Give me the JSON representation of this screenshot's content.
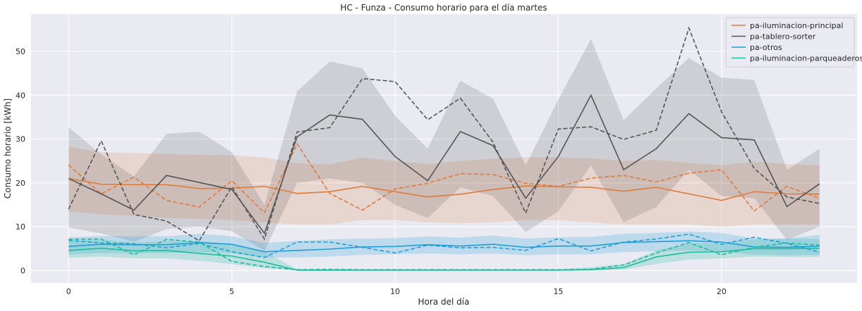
{
  "chart_data": {
    "type": "line",
    "title": "HC - Funza - Consumo horario para el día martes",
    "xlabel": "Hora del día",
    "ylabel": "Consumo horario [kWh]",
    "xlim": [
      -1.15,
      24.15
    ],
    "ylim": [
      -2.8,
      58.5
    ],
    "xticks": [
      0,
      5,
      10,
      15,
      20
    ],
    "yticks": [
      0,
      10,
      20,
      30,
      40,
      50
    ],
    "grid": true,
    "legend_position": "top-right",
    "x": [
      0,
      1,
      2,
      3,
      4,
      5,
      6,
      7,
      8,
      9,
      10,
      11,
      12,
      13,
      14,
      15,
      16,
      17,
      18,
      19,
      20,
      21,
      22,
      23
    ],
    "series": [
      {
        "name": "pa-iluminacion-principal",
        "color": "#e07b39",
        "mean": [
          21,
          19.7,
          19.6,
          19.6,
          18.7,
          18.8,
          19.2,
          17.6,
          18.0,
          19.2,
          18.0,
          16.8,
          17.4,
          18.5,
          19.3,
          19.1,
          19.0,
          18.1,
          19.0,
          17.5,
          16.0,
          18.0,
          17.5,
          17.4
        ],
        "lower": [
          13.5,
          12.8,
          12.5,
          12.0,
          11.8,
          11.5,
          11.0,
          10.5,
          10.5,
          11.5,
          11.5,
          11.0,
          10.8,
          11.0,
          11.5,
          11.5,
          11.0,
          10.5,
          10.5,
          10.5,
          10.0,
          10.5,
          10.5,
          10.5
        ],
        "upper": [
          28.2,
          27.0,
          26.8,
          26.6,
          26.4,
          26.3,
          25.8,
          24.5,
          24.2,
          25.8,
          25.0,
          24.3,
          25.0,
          25.5,
          25.8,
          25.8,
          25.6,
          25.0,
          25.2,
          24.6,
          24.0,
          24.8,
          24.3,
          24.0
        ],
        "dashed": [
          24.1,
          17.5,
          21.3,
          16.0,
          14.5,
          20.5,
          13.2,
          28.9,
          17.6,
          13.8,
          18.6,
          19.9,
          22.1,
          21.9,
          19.9,
          19.2,
          21.1,
          21.7,
          20.2,
          22.2,
          23.0,
          13.6,
          19.2,
          16.5
        ]
      },
      {
        "name": "pa-tablero-sorter",
        "color": "#555555",
        "mean": [
          21.0,
          17.5,
          13.8,
          21.7,
          20.1,
          18.5,
          8.5,
          30.5,
          35.5,
          34.5,
          26.0,
          20.5,
          31.7,
          28.5,
          16.5,
          26.0,
          40.0,
          23.0,
          27.8,
          35.8,
          30.3,
          29.8,
          14.6,
          19.8
        ],
        "lower": [
          9.8,
          8.5,
          6.5,
          9.5,
          10.0,
          9.0,
          4.5,
          20.0,
          21.0,
          20.0,
          15.0,
          12.0,
          19.0,
          17.0,
          8.8,
          13.5,
          24.0,
          11.0,
          14.5,
          23.0,
          17.0,
          16.5,
          7.0,
          10.0
        ],
        "upper": [
          32.7,
          26.5,
          21.5,
          31.2,
          31.7,
          27.0,
          15.0,
          40.9,
          47.7,
          46.1,
          35.3,
          27.8,
          43.3,
          39.2,
          24.0,
          39.0,
          52.8,
          34.3,
          41.5,
          48.5,
          44.0,
          43.5,
          23.0,
          27.8
        ],
        "dashed": [
          14.0,
          29.6,
          12.8,
          11.3,
          6.8,
          19.1,
          7.2,
          31.6,
          32.6,
          43.8,
          43.1,
          34.4,
          39.3,
          29.3,
          13.1,
          32.3,
          32.8,
          29.9,
          32.0,
          55.3,
          36.2,
          23.3,
          16.8,
          15.3
        ]
      },
      {
        "name": "pa-otros",
        "color": "#1f9ed8",
        "mean": [
          5.5,
          6.0,
          5.9,
          5.9,
          6.4,
          6.0,
          4.3,
          4.6,
          4.9,
          5.4,
          5.5,
          5.9,
          5.6,
          6.0,
          5.3,
          5.6,
          5.6,
          6.4,
          6.6,
          6.8,
          6.5,
          5.4,
          5.3,
          5.6
        ],
        "lower": [
          3.7,
          4.0,
          4.0,
          4.0,
          4.2,
          4.0,
          3.0,
          3.0,
          3.2,
          3.6,
          3.7,
          3.9,
          3.7,
          3.9,
          3.5,
          3.7,
          3.7,
          4.2,
          4.4,
          4.6,
          4.4,
          3.6,
          3.5,
          3.6
        ],
        "upper": [
          7.6,
          7.9,
          7.8,
          7.8,
          8.4,
          7.8,
          6.3,
          6.8,
          7.1,
          7.3,
          7.4,
          7.8,
          7.5,
          8.0,
          7.3,
          7.6,
          7.7,
          8.4,
          8.6,
          8.9,
          8.6,
          7.3,
          7.3,
          8.2
        ],
        "dashed": [
          6.9,
          6.3,
          6.1,
          5.2,
          6.2,
          4.3,
          3.0,
          6.5,
          6.5,
          5.3,
          4.0,
          5.8,
          5.2,
          5.3,
          4.6,
          7.3,
          4.5,
          6.5,
          7.2,
          8.3,
          6.0,
          7.6,
          6.2,
          4.2
        ]
      },
      {
        "name": "pa-iluminacion-parqueaderos",
        "color": "#1abc9c",
        "mean": [
          4.6,
          5.1,
          4.5,
          4.6,
          3.9,
          3.3,
          1.9,
          0.1,
          0.1,
          0.1,
          0.1,
          0.1,
          0.1,
          0.1,
          0.1,
          0.1,
          0.2,
          0.7,
          3.1,
          4.2,
          4.3,
          5.0,
          5.0,
          5.1
        ],
        "lower": [
          2.9,
          3.2,
          2.8,
          2.8,
          2.2,
          1.5,
          0.6,
          0.0,
          0.0,
          0.0,
          0.0,
          0.0,
          0.0,
          0.0,
          0.0,
          0.0,
          0.0,
          0.2,
          1.5,
          2.5,
          2.8,
          3.2,
          3.1,
          3.1
        ],
        "upper": [
          6.8,
          7.1,
          6.4,
          6.7,
          6.7,
          6.0,
          4.3,
          0.3,
          0.3,
          0.3,
          0.3,
          0.3,
          0.3,
          0.3,
          0.3,
          0.3,
          0.8,
          1.5,
          4.6,
          6.2,
          6.2,
          7.1,
          7.3,
          7.2
        ],
        "dashed": [
          7.1,
          7.2,
          3.6,
          7.1,
          6.5,
          2.1,
          0.9,
          0.2,
          0.3,
          0.2,
          0.2,
          0.2,
          0.2,
          0.2,
          0.2,
          0.2,
          0.3,
          1.3,
          4.0,
          6.4,
          3.6,
          5.3,
          6.3,
          5.8
        ]
      }
    ]
  }
}
